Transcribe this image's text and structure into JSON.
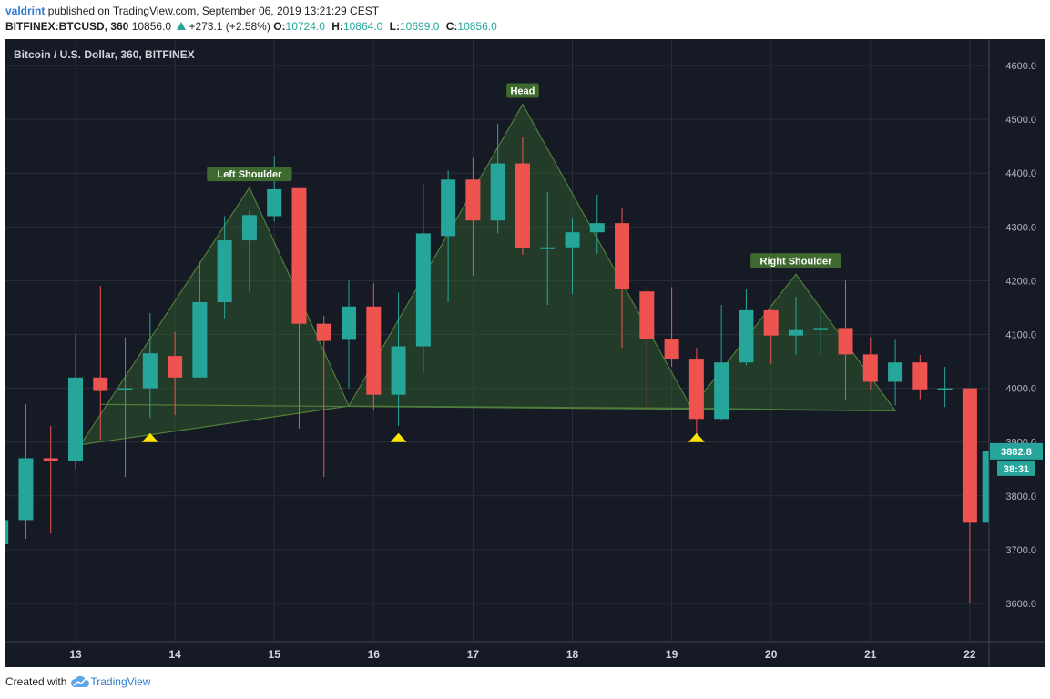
{
  "header": {
    "author": "valdrint",
    "published_text": "published on TradingView.com, September 06, 2019 13:21:29 CEST",
    "symbol": "BITFINEX:BTCUSD, 360",
    "last": "10856.0",
    "change": "+273.1 (+2.58%)",
    "o_label": "O:",
    "o_value": "10724.0",
    "h_label": "H:",
    "h_value": "10864.0",
    "l_label": "L:",
    "l_value": "10699.0",
    "c_label": "C:",
    "c_value": "10856.0"
  },
  "footer": {
    "created_with": "Created with",
    "brand": "TradingView"
  },
  "colors": {
    "background": "#161a25",
    "grid": "#2a2e39",
    "up": "#26a69a",
    "down": "#ef5350",
    "pattern_fill": "#2f5a2e",
    "pattern_stroke": "#4f7d3a",
    "label_bg": "#3f6a2f",
    "marker": "#ffe500"
  },
  "chart_data": {
    "type": "candlestick",
    "title": "Bitcoin / U.S. Dollar, 360, BITFINEX",
    "y_range": [
      3560,
      4640
    ],
    "y_ticks": [
      "3600.0",
      "3700.0",
      "3800.0",
      "3900.0",
      "4000.0",
      "4100.0",
      "4200.0",
      "4300.0",
      "4400.0",
      "4500.0",
      "4600.0"
    ],
    "x_ticks": [
      {
        "label": "13",
        "x": 13
      },
      {
        "label": "14",
        "x": 14
      },
      {
        "label": "15",
        "x": 15
      },
      {
        "label": "16",
        "x": 16
      },
      {
        "label": "17",
        "x": 17
      },
      {
        "label": "18",
        "x": 18
      },
      {
        "label": "19",
        "x": 19
      },
      {
        "label": "20",
        "x": 20
      },
      {
        "label": "21",
        "x": 21
      },
      {
        "label": "22",
        "x": 22
      }
    ],
    "x_range": [
      12.3,
      22.2
    ],
    "candles": [
      {
        "x": 12.25,
        "o": 3710,
        "h": 3760,
        "l": 3700,
        "c": 3755
      },
      {
        "x": 12.5,
        "o": 3755,
        "h": 3970,
        "l": 3720,
        "c": 3870
      },
      {
        "x": 12.75,
        "o": 3870,
        "h": 3930,
        "l": 3730,
        "c": 3865
      },
      {
        "x": 13.0,
        "o": 3865,
        "h": 4100,
        "l": 3850,
        "c": 4020
      },
      {
        "x": 13.25,
        "o": 4020,
        "h": 4190,
        "l": 3905,
        "c": 3995
      },
      {
        "x": 13.5,
        "o": 3998,
        "h": 4095,
        "l": 3835,
        "c": 4000
      },
      {
        "x": 13.75,
        "o": 4000,
        "h": 4140,
        "l": 3945,
        "c": 4065
      },
      {
        "x": 14.0,
        "o": 4060,
        "h": 4105,
        "l": 3950,
        "c": 4020
      },
      {
        "x": 14.25,
        "o": 4020,
        "h": 4235,
        "l": 4020,
        "c": 4160
      },
      {
        "x": 14.5,
        "o": 4160,
        "h": 4320,
        "l": 4130,
        "c": 4275
      },
      {
        "x": 14.75,
        "o": 4275,
        "h": 4330,
        "l": 4180,
        "c": 4322
      },
      {
        "x": 15.0,
        "o": 4320,
        "h": 4432,
        "l": 4310,
        "c": 4370
      },
      {
        "x": 15.25,
        "o": 4372,
        "h": 4372,
        "l": 3925,
        "c": 4120
      },
      {
        "x": 15.5,
        "o": 4120,
        "h": 4135,
        "l": 3835,
        "c": 4088
      },
      {
        "x": 15.75,
        "o": 4090,
        "h": 4200,
        "l": 4000,
        "c": 4152
      },
      {
        "x": 16.0,
        "o": 4152,
        "h": 4195,
        "l": 3960,
        "c": 3988
      },
      {
        "x": 16.25,
        "o": 3988,
        "h": 4178,
        "l": 3930,
        "c": 4078
      },
      {
        "x": 16.5,
        "o": 4078,
        "h": 4380,
        "l": 4030,
        "c": 4288
      },
      {
        "x": 16.75,
        "o": 4283,
        "h": 4405,
        "l": 4160,
        "c": 4388
      },
      {
        "x": 17.0,
        "o": 4388,
        "h": 4428,
        "l": 4210,
        "c": 4312
      },
      {
        "x": 17.25,
        "o": 4312,
        "h": 4492,
        "l": 4288,
        "c": 4418
      },
      {
        "x": 17.5,
        "o": 4418,
        "h": 4468,
        "l": 4248,
        "c": 4260
      },
      {
        "x": 17.75,
        "o": 4260,
        "h": 4365,
        "l": 4155,
        "c": 4262
      },
      {
        "x": 18.0,
        "o": 4262,
        "h": 4315,
        "l": 4175,
        "c": 4290
      },
      {
        "x": 18.25,
        "o": 4290,
        "h": 4360,
        "l": 4250,
        "c": 4307
      },
      {
        "x": 18.5,
        "o": 4307,
        "h": 4336,
        "l": 4075,
        "c": 4185
      },
      {
        "x": 18.75,
        "o": 4180,
        "h": 4190,
        "l": 3958,
        "c": 4092
      },
      {
        "x": 19.0,
        "o": 4092,
        "h": 4188,
        "l": 4040,
        "c": 4055
      },
      {
        "x": 19.25,
        "o": 4055,
        "h": 4075,
        "l": 3910,
        "c": 3943
      },
      {
        "x": 19.5,
        "o": 3943,
        "h": 4155,
        "l": 3940,
        "c": 4048
      },
      {
        "x": 19.75,
        "o": 4048,
        "h": 4185,
        "l": 4043,
        "c": 4145
      },
      {
        "x": 20.0,
        "o": 4145,
        "h": 4148,
        "l": 4045,
        "c": 4098
      },
      {
        "x": 20.25,
        "o": 4098,
        "h": 4170,
        "l": 4062,
        "c": 4108
      },
      {
        "x": 20.5,
        "o": 4108,
        "h": 4148,
        "l": 4063,
        "c": 4112
      },
      {
        "x": 20.75,
        "o": 4112,
        "h": 4200,
        "l": 3978,
        "c": 4063
      },
      {
        "x": 21.0,
        "o": 4063,
        "h": 4095,
        "l": 3998,
        "c": 4012
      },
      {
        "x": 21.25,
        "o": 4012,
        "h": 4090,
        "l": 3968,
        "c": 4048
      },
      {
        "x": 21.5,
        "o": 4048,
        "h": 4062,
        "l": 3980,
        "c": 3998
      },
      {
        "x": 21.75,
        "o": 3998,
        "h": 4040,
        "l": 3965,
        "c": 4000
      },
      {
        "x": 22.0,
        "o": 4000,
        "h": 4000,
        "l": 3600,
        "c": 3750
      },
      {
        "x": 22.2,
        "o": 3750,
        "h": 3895,
        "l": 3745,
        "c": 3882.8
      }
    ],
    "pattern": [
      {
        "name": "left-shoulder",
        "label": "Left Shoulder",
        "points": [
          [
            13.05,
            3895
          ],
          [
            14.75,
            4373
          ],
          [
            15.75,
            3967
          ]
        ]
      },
      {
        "name": "head",
        "label": "Head",
        "points": [
          [
            15.75,
            3967
          ],
          [
            17.5,
            4528
          ],
          [
            19.2,
            3963
          ]
        ]
      },
      {
        "name": "right-shoulder",
        "label": "Right Shoulder",
        "points": [
          [
            19.2,
            3963
          ],
          [
            20.25,
            4212
          ],
          [
            21.25,
            3958
          ]
        ]
      }
    ],
    "neckline": [
      [
        13.25,
        3970
      ],
      [
        21.25,
        3958
      ]
    ],
    "markers": [
      13.75,
      16.25,
      19.25
    ],
    "markers_y": 3910,
    "last_price_label": "3882.8",
    "last_price": 3882.8,
    "countdown_label": "38:31"
  }
}
